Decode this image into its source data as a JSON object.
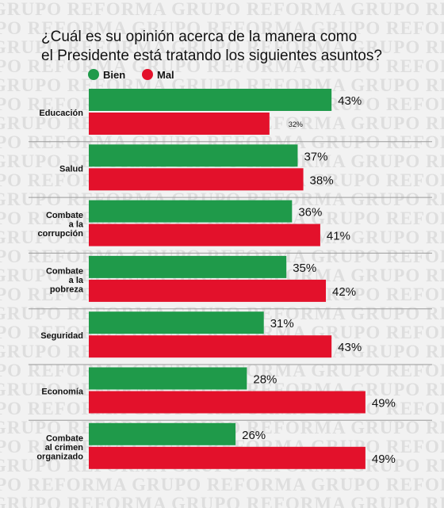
{
  "watermark": "GRUPO REFORMA",
  "chart_data": {
    "type": "bar",
    "orientation": "horizontal",
    "title": "¿Cuál es su opinión acerca de la manera como el Presidente está tratando los siguientes asuntos?",
    "title_lines": [
      "¿Cuál es su opinión acerca de la manera como",
      "el Presidente está tratando los siguientes asuntos?"
    ],
    "categories": [
      [
        "Educación"
      ],
      [
        "Salud"
      ],
      [
        "Combate",
        "a la",
        "corrupción"
      ],
      [
        "Combate",
        "a la",
        "pobreza"
      ],
      [
        "Seguridad"
      ],
      [
        "Economía"
      ],
      [
        "Combate",
        "al crimen",
        "organizado"
      ]
    ],
    "series": [
      {
        "name": "Bien",
        "color": "#1f9a4a",
        "values": [
          43,
          37,
          36,
          35,
          31,
          28,
          26
        ]
      },
      {
        "name": "Mal",
        "color": "#e3112b",
        "values": [
          32,
          38,
          41,
          42,
          43,
          49,
          49
        ]
      }
    ],
    "value_labels": [
      [
        "43%",
        "37%",
        "36%",
        "35%",
        "31%",
        "28%",
        "26%"
      ],
      [
        "32%",
        "38%",
        "41%",
        "42%",
        "43%",
        "49%",
        "49%"
      ]
    ],
    "xlim": [
      0,
      100
    ],
    "unit": "%",
    "legend_position": "top-left",
    "grid": false
  }
}
